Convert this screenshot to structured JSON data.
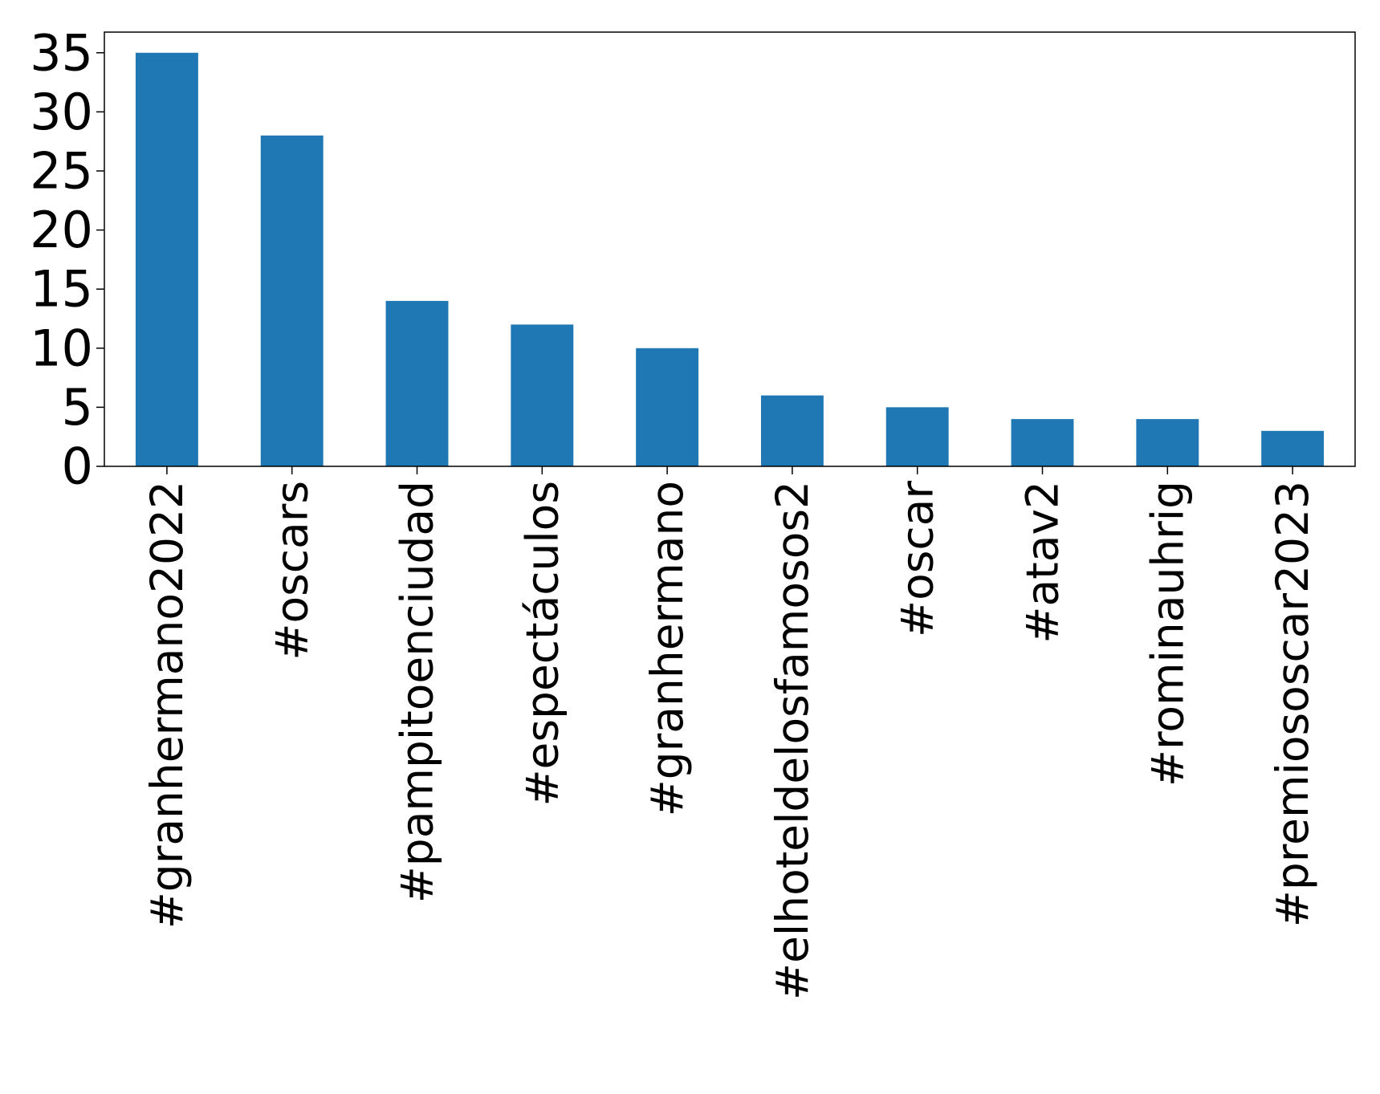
{
  "chart_data": {
    "type": "bar",
    "title": "",
    "xlabel": "",
    "ylabel": "",
    "categories": [
      "#granhermano2022",
      "#oscars",
      "#pampitoenciudad",
      "#espectáculos",
      "#granhermano",
      "#elhoteldelosfamosos2",
      "#oscar",
      "#atav2",
      "#rominauhrig",
      "#premiososcar2023"
    ],
    "values": [
      35,
      28,
      14,
      12,
      10,
      6,
      5,
      4,
      4,
      3
    ],
    "ylim": [
      0,
      36.75
    ],
    "yticks": [
      0,
      5,
      10,
      15,
      20,
      25,
      30,
      35
    ],
    "bar_color": "#1f77b4",
    "grid": false,
    "legend": "none"
  }
}
